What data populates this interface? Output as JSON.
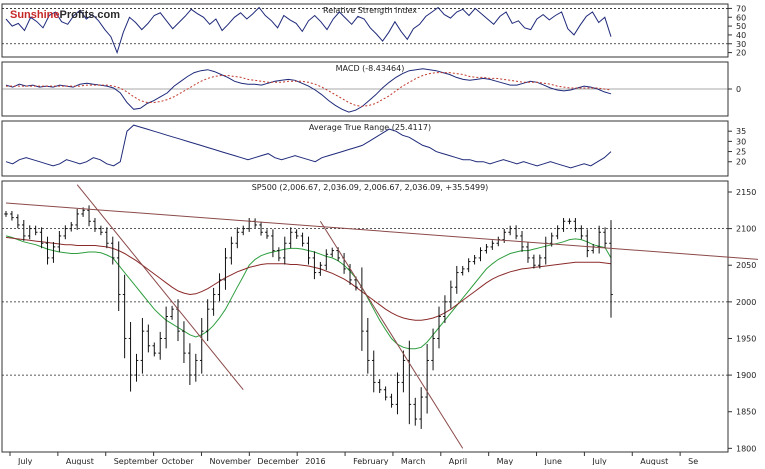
{
  "logo": {
    "part1": "Sunshine",
    "part2": "Profits.com"
  },
  "colors": {
    "price": "#111111",
    "signal": "#c0392b",
    "ma_short": "#2e9e3e",
    "ma_long": "#8b2a2a",
    "trendline": "#8b4a4a",
    "panel_line": "#1f2a7a",
    "grid": "#222222"
  },
  "chart_data": [
    {
      "type": "line",
      "title": "Relative Strength Index",
      "ylim": [
        15,
        75
      ],
      "yticks": [
        20,
        30,
        40,
        50,
        60,
        70
      ],
      "reference_lines": [
        30,
        70
      ],
      "series": [
        {
          "values": [
            58,
            50,
            53,
            45,
            60,
            55,
            48,
            62,
            66,
            55,
            52,
            62,
            68,
            58,
            63,
            56,
            46,
            38,
            20,
            43,
            60,
            54,
            46,
            53,
            62,
            65,
            56,
            47,
            54,
            61,
            69,
            64,
            60,
            52,
            58,
            45,
            52,
            60,
            65,
            58,
            64,
            71,
            62,
            56,
            48,
            62,
            57,
            53,
            44,
            56,
            62,
            55,
            46,
            58,
            66,
            59,
            52,
            61,
            58,
            48,
            41,
            33,
            43,
            55,
            44,
            35,
            47,
            52,
            61,
            66,
            71,
            63,
            59,
            66,
            69,
            62,
            70,
            64,
            58,
            52,
            61,
            66,
            53,
            56,
            48,
            46,
            58,
            63,
            57,
            62,
            66,
            47,
            40,
            51,
            61,
            66,
            54,
            60,
            38
          ]
        }
      ]
    },
    {
      "type": "line",
      "title": "MACD (-8.43464)",
      "ylim": [
        -28,
        28
      ],
      "yticks": [
        0
      ],
      "series": [
        {
          "values": [
            4,
            2,
            5,
            3,
            4,
            2,
            3,
            2,
            4,
            3,
            2,
            5,
            6,
            5,
            4,
            3,
            1,
            -4,
            -14,
            -21,
            -20,
            -15,
            -12,
            -8,
            -4,
            3,
            8,
            13,
            17,
            19,
            20,
            18,
            15,
            12,
            8,
            6,
            5,
            5,
            4,
            6,
            8,
            9,
            10,
            9,
            6,
            3,
            -1,
            -6,
            -12,
            -17,
            -21,
            -24,
            -22,
            -18,
            -12,
            -6,
            1,
            7,
            12,
            16,
            19,
            20,
            21,
            20,
            19,
            17,
            15,
            12,
            10,
            9,
            10,
            11,
            10,
            8,
            6,
            4,
            4,
            6,
            8,
            7,
            4,
            1,
            -1,
            -2,
            -1,
            1,
            3,
            2,
            0,
            -3,
            -5
          ]
        },
        {
          "values": [
            3,
            3,
            3,
            3,
            3,
            3,
            3,
            3,
            3,
            3,
            3,
            3,
            4,
            4,
            4,
            4,
            3,
            1,
            -3,
            -8,
            -12,
            -14,
            -14,
            -13,
            -11,
            -8,
            -4,
            0,
            4,
            8,
            11,
            13,
            14,
            14,
            13,
            12,
            10,
            9,
            8,
            7,
            7,
            7,
            8,
            8,
            8,
            7,
            5,
            2,
            -2,
            -6,
            -10,
            -14,
            -17,
            -18,
            -17,
            -15,
            -11,
            -7,
            -2,
            3,
            7,
            11,
            14,
            16,
            17,
            17,
            17,
            16,
            15,
            13,
            12,
            12,
            11,
            11,
            10,
            9,
            8,
            7,
            7,
            7,
            6,
            5,
            3,
            2,
            1,
            1,
            1,
            1,
            1,
            0,
            -1
          ]
        }
      ]
    },
    {
      "type": "line",
      "title": "Average True Range (25.4117)",
      "ylim": [
        13,
        40
      ],
      "yticks": [
        20,
        25,
        30,
        35
      ],
      "series": [
        {
          "values": [
            20,
            19,
            21,
            22,
            21,
            20,
            19,
            18,
            19,
            21,
            20,
            19,
            20,
            22,
            21,
            19,
            18,
            20,
            35,
            38,
            37,
            36,
            35,
            34,
            33,
            32,
            31,
            30,
            29,
            28,
            27,
            26,
            25,
            24,
            23,
            22,
            21,
            22,
            23,
            24,
            22,
            21,
            22,
            23,
            22,
            21,
            20,
            22,
            23,
            24,
            25,
            26,
            27,
            28,
            30,
            32,
            34,
            36,
            35,
            33,
            32,
            30,
            28,
            27,
            25,
            24,
            23,
            22,
            21,
            21,
            20,
            20,
            19,
            20,
            21,
            20,
            19,
            20,
            19,
            18,
            19,
            20,
            19,
            18,
            17,
            18,
            19,
            18,
            20,
            22,
            25
          ]
        }
      ]
    },
    {
      "type": "line",
      "title": "SP500 (2,006.67, 2,036.09, 2,006.67, 2,036.09, +35.5499)",
      "ylim": [
        1795,
        2165
      ],
      "yticks": [
        1800,
        1850,
        1900,
        1950,
        2000,
        2050,
        2100,
        2150
      ],
      "reference_lines": [
        1900,
        2000,
        2100
      ],
      "xticks": [
        "July",
        "August",
        "September",
        "October",
        "November",
        "December",
        "2016",
        "February",
        "March",
        "April",
        "May",
        "June",
        "July",
        "August",
        "Se"
      ],
      "series": [
        {
          "values": [
            2120,
            2115,
            2105,
            2090,
            2100,
            2095,
            2080,
            2060,
            2075,
            2090,
            2100,
            2105,
            2120,
            2125,
            2110,
            2100,
            2095,
            2080,
            2060,
            2010,
            1950,
            1900,
            1920,
            1960,
            1940,
            1930,
            1950,
            1980,
            1990,
            1960,
            1930,
            1900,
            1920,
            1960,
            1990,
            2010,
            2030,
            2060,
            2080,
            2095,
            2100,
            2110,
            2105,
            2095,
            2090,
            2070,
            2060,
            2080,
            2095,
            2090,
            2080,
            2060,
            2040,
            2050,
            2065,
            2070,
            2060,
            2045,
            2030,
            2020,
            1960,
            1920,
            1890,
            1880,
            1870,
            1860,
            1890,
            1920,
            1860,
            1840,
            1870,
            1920,
            1950,
            1980,
            2000,
            2020,
            2040,
            2045,
            2055,
            2060,
            2070,
            2075,
            2080,
            2085,
            2095,
            2100,
            2090,
            2075,
            2060,
            2050,
            2060,
            2080,
            2090,
            2100,
            2110,
            2110,
            2100,
            2090,
            2070,
            2075,
            2095,
            2080,
            2010
          ]
        },
        {
          "values": [
            2090,
            2088,
            2085,
            2082,
            2080,
            2078,
            2075,
            2072,
            2070,
            2068,
            2067,
            2066,
            2066,
            2067,
            2068,
            2068,
            2067,
            2064,
            2060,
            2050,
            2040,
            2030,
            2020,
            2010,
            2000,
            1990,
            1982,
            1975,
            1970,
            1965,
            1960,
            1955,
            1952,
            1955,
            1960,
            1968,
            1978,
            1990,
            2005,
            2020,
            2035,
            2050,
            2058,
            2063,
            2066,
            2068,
            2070,
            2072,
            2073,
            2073,
            2072,
            2070,
            2068,
            2065,
            2062,
            2060,
            2056,
            2050,
            2042,
            2032,
            2020,
            2005,
            1990,
            1975,
            1962,
            1950,
            1942,
            1938,
            1936,
            1936,
            1938,
            1945,
            1955,
            1965,
            1975,
            1985,
            1995,
            2005,
            2015,
            2025,
            2035,
            2045,
            2052,
            2058,
            2062,
            2066,
            2068,
            2070,
            2070,
            2072,
            2074,
            2076,
            2078,
            2080,
            2082,
            2085,
            2086,
            2085,
            2082,
            2078,
            2076,
            2074,
            2060
          ]
        },
        {
          "values": [
            2088,
            2087,
            2086,
            2085,
            2084,
            2083,
            2082,
            2081,
            2080,
            2079,
            2078,
            2078,
            2077,
            2077,
            2077,
            2077,
            2076,
            2075,
            2073,
            2070,
            2066,
            2061,
            2056,
            2050,
            2044,
            2038,
            2032,
            2026,
            2020,
            2015,
            2012,
            2010,
            2011,
            2014,
            2018,
            2023,
            2028,
            2033,
            2037,
            2041,
            2044,
            2047,
            2049,
            2051,
            2052,
            2052,
            2052,
            2052,
            2051,
            2051,
            2050,
            2049,
            2047,
            2045,
            2042,
            2039,
            2035,
            2031,
            2026,
            2020,
            2014,
            2008,
            2002,
            1996,
            1990,
            1985,
            1981,
            1978,
            1976,
            1975,
            1975,
            1976,
            1978,
            1981,
            1985,
            1990,
            1996,
            2002,
            2008,
            2014,
            2020,
            2026,
            2031,
            2035,
            2038,
            2041,
            2043,
            2045,
            2046,
            2047,
            2048,
            2049,
            2050,
            2051,
            2052,
            2053,
            2054,
            2054,
            2054,
            2054,
            2054,
            2053,
            2052
          ]
        }
      ]
    }
  ]
}
